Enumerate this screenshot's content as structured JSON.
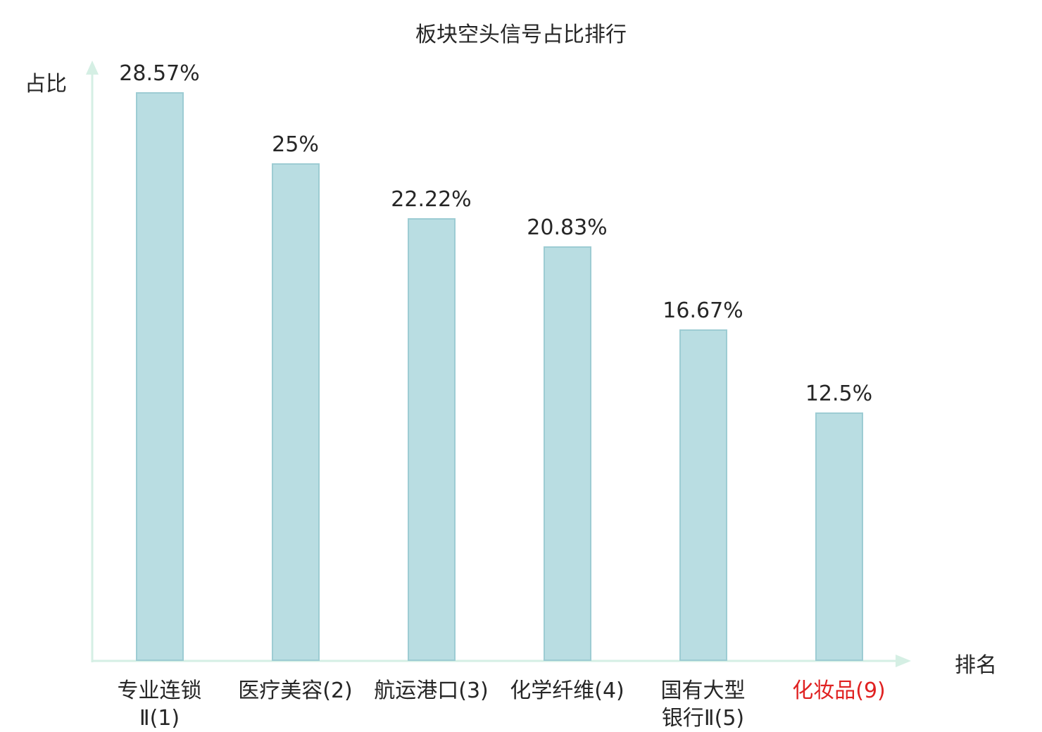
{
  "chart_data": {
    "type": "bar",
    "title": "板块空头信号占比排行",
    "ylabel": "占比",
    "xlabel": "排名",
    "categories": [
      "专业连锁\nⅡ(1)",
      "医疗美容(2)",
      "航运港口(3)",
      "化学纤维(4)",
      "国有大型\n银行Ⅱ(5)",
      "化妆品(9)"
    ],
    "values": [
      28.57,
      25,
      22.22,
      20.83,
      16.67,
      12.5
    ],
    "value_labels": [
      "28.57%",
      "25%",
      "22.22%",
      "20.83%",
      "16.67%",
      "12.5%"
    ],
    "category_colors": [
      "#262626",
      "#262626",
      "#262626",
      "#262626",
      "#262626",
      "#e02222"
    ],
    "bar_fill": "#b9dde2",
    "bar_border": "#9dccd3",
    "axis_color": "#d5efe4",
    "text_color": "#262626",
    "highlight_color": "#e02222",
    "ylim": [
      0,
      30
    ],
    "grid": false,
    "legend": "none"
  }
}
